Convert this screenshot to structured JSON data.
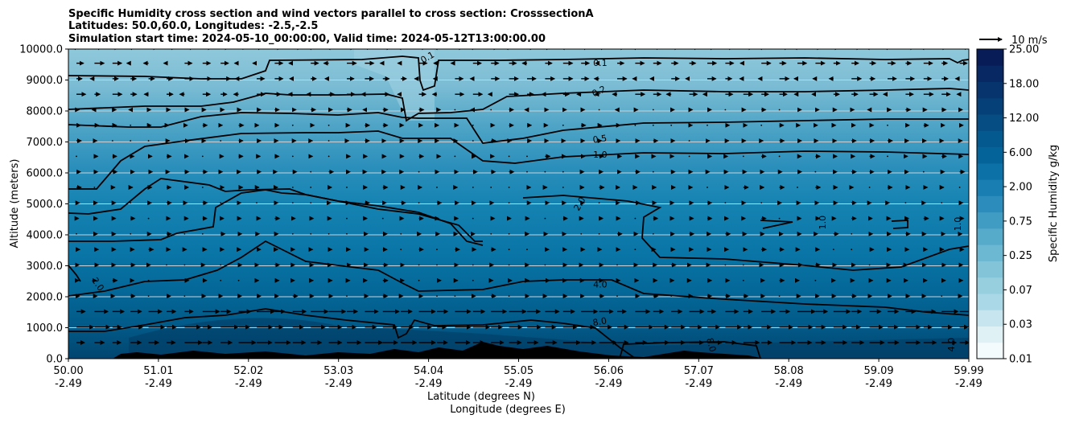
{
  "chart_data": {
    "type": "heatmap",
    "title_lines": [
      "Specific Humidity cross section and wind vectors parallel to cross section: CrosssectionA",
      "Latitudes: 50.0,60.0, Longitudes: -2.5,-2.5",
      "Simulation start time: 2024-05-10_00:00:00, Valid time: 2024-05-12T13:00:00.00"
    ],
    "xlabel_lines": [
      "Latitude (degrees N)",
      "Longitude (degrees E)"
    ],
    "ylabel": "Altitude (meters)",
    "colorbar_label": "Specific Humidity g/kg",
    "quiver_key_label": "10 m/s",
    "x_ticks": [
      {
        "lat": "50.00",
        "lon": "-2.49"
      },
      {
        "lat": "51.01",
        "lon": "-2.49"
      },
      {
        "lat": "52.02",
        "lon": "-2.49"
      },
      {
        "lat": "53.03",
        "lon": "-2.49"
      },
      {
        "lat": "54.04",
        "lon": "-2.49"
      },
      {
        "lat": "55.05",
        "lon": "-2.49"
      },
      {
        "lat": "56.06",
        "lon": "-2.49"
      },
      {
        "lat": "57.07",
        "lon": "-2.49"
      },
      {
        "lat": "58.08",
        "lon": "-2.49"
      },
      {
        "lat": "59.09",
        "lon": "-2.49"
      },
      {
        "lat": "59.99",
        "lon": "-2.49"
      }
    ],
    "y_ticks": [
      "0.0",
      "1000.0",
      "2000.0",
      "3000.0",
      "4000.0",
      "5000.0",
      "6000.0",
      "7000.0",
      "8000.0",
      "9000.0",
      "10000.0"
    ],
    "y_values": [
      0,
      1000,
      2000,
      3000,
      4000,
      5000,
      6000,
      7000,
      8000,
      9000,
      10000
    ],
    "ylim": [
      0,
      10000
    ],
    "grid": "horizontal",
    "colorbar_ticks": [
      "0.01",
      "0.03",
      "0.07",
      "0.25",
      "0.75",
      "2.00",
      "6.00",
      "12.00",
      "18.00",
      "25.00"
    ],
    "contour_levels": [
      "0.1",
      "0.2",
      "0.5",
      "1.0",
      "2.0",
      "4.0",
      "8.0"
    ],
    "contour_labels": [
      {
        "text": "0.1",
        "lat": 54.0,
        "alt": 9650,
        "rot": -30
      },
      {
        "text": "0.1",
        "lat": 55.9,
        "alt": 9450,
        "rot": 0
      },
      {
        "text": "0.2",
        "lat": 55.9,
        "alt": 8550,
        "rot": -25
      },
      {
        "text": "0.5",
        "lat": 55.9,
        "alt": 7000,
        "rot": -8
      },
      {
        "text": "1.0",
        "lat": 55.9,
        "alt": 6500,
        "rot": 0
      },
      {
        "text": "2.0",
        "lat": 55.7,
        "alt": 4950,
        "rot": -60
      },
      {
        "text": "4.0",
        "lat": 55.9,
        "alt": 2300,
        "rot": 0
      },
      {
        "text": "8.0",
        "lat": 55.9,
        "alt": 1100,
        "rot": -10
      },
      {
        "text": "8.0",
        "lat": 57.1,
        "alt": 420,
        "rot": 75
      },
      {
        "text": "2.0",
        "lat": 50.3,
        "alt": 2350,
        "rot": 55
      },
      {
        "text": "1.0",
        "lat": 58.4,
        "alt": 4400,
        "rot": -90
      },
      {
        "text": "1.0",
        "lat": 59.9,
        "alt": 4350,
        "rot": -90
      },
      {
        "text": "4.0",
        "lat": 60.9,
        "alt": 450,
        "rot": -90
      }
    ],
    "colors": {
      "top": "#8cc6da",
      "bottom": "#024a80",
      "contour": "#000000",
      "colorbar_top": "#08205a",
      "colorbar_bottom": "#f4fbfc"
    }
  }
}
